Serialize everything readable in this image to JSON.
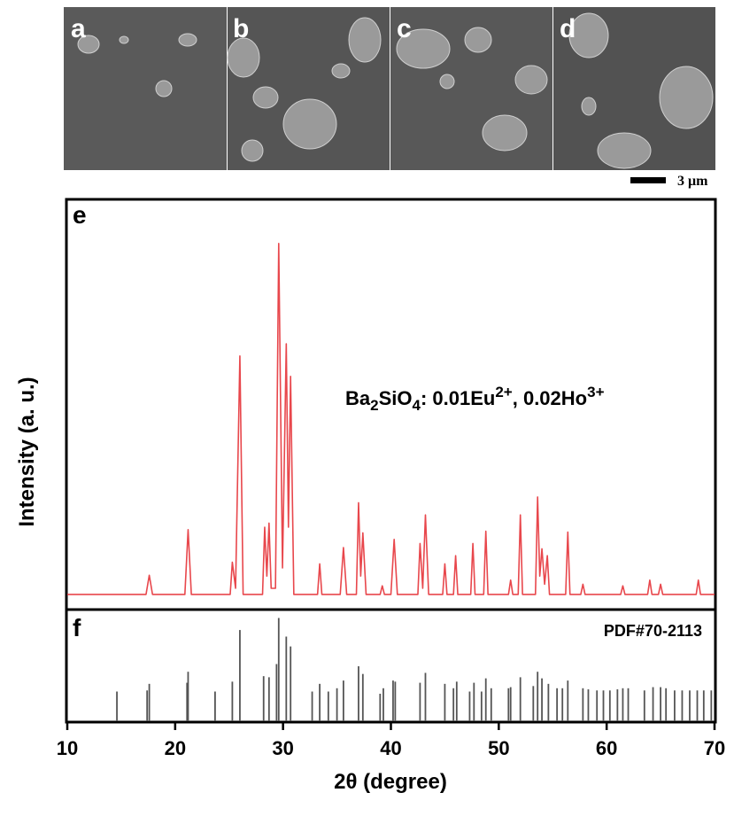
{
  "sem_panels": {
    "labels": [
      "a",
      "b",
      "c",
      "d"
    ],
    "scale_bar": "3 μm"
  },
  "chart_data": [
    {
      "type": "line",
      "panel_label": "e",
      "ylabel": "Intensity (a. u.)",
      "annotation": [
        "Ba",
        "2",
        "SiO",
        "4",
        ": 0.01Eu",
        "2+",
        ", 0.02Ho",
        "3+"
      ],
      "xlim": [
        10,
        70
      ],
      "ylim": [
        0,
        100
      ],
      "series": [
        {
          "color": "#e8474c",
          "x": [
            10,
            17.3,
            17.6,
            17.9,
            20.9,
            21.2,
            21.5,
            25.1,
            25.3,
            25.6,
            26.0,
            26.3,
            28.1,
            28.3,
            28.5,
            28.7,
            28.9,
            29.3,
            29.6,
            29.95,
            30.3,
            30.5,
            30.7,
            31.0,
            33.2,
            33.4,
            33.6,
            35.3,
            35.6,
            35.9,
            36.8,
            37.0,
            37.2,
            37.4,
            37.7,
            39.0,
            39.2,
            39.4,
            40.0,
            40.3,
            40.6,
            42.5,
            42.7,
            42.95,
            43.2,
            43.5,
            44.8,
            45.0,
            45.2,
            45.8,
            46.0,
            46.2,
            47.4,
            47.6,
            47.8,
            48.6,
            48.8,
            49.0,
            50.9,
            51.1,
            51.3,
            51.8,
            52.0,
            52.2,
            53.4,
            53.6,
            53.8,
            54.0,
            54.25,
            54.5,
            54.7,
            56.2,
            56.4,
            56.6,
            57.6,
            57.8,
            58.0,
            61.3,
            61.5,
            61.7,
            63.8,
            64.0,
            64.2,
            64.8,
            65.0,
            65.2,
            68.3,
            68.5,
            68.7,
            70
          ],
          "values": [
            3.5,
            3.5,
            8.2,
            3.5,
            3.5,
            19.4,
            3.5,
            3.5,
            11.4,
            5,
            62,
            3.5,
            3.5,
            20,
            8,
            21,
            5,
            5,
            89.6,
            10,
            65,
            20,
            57,
            3.5,
            3.5,
            11,
            3.5,
            3.5,
            15,
            3.5,
            3.5,
            26,
            8,
            18.6,
            3.5,
            3.5,
            5.6,
            3.5,
            3.5,
            17,
            3.5,
            3.5,
            16,
            5,
            23,
            3.5,
            3.5,
            11,
            3.5,
            3.5,
            13,
            3.5,
            3.5,
            16,
            3.5,
            3.5,
            19,
            3.5,
            3.5,
            7,
            3.5,
            3.5,
            23,
            3.5,
            3.5,
            27.4,
            8,
            14.7,
            6,
            13,
            3.5,
            3.5,
            18.8,
            3.5,
            3.5,
            6,
            3.5,
            3.5,
            5.6,
            3.5,
            3.5,
            7,
            3.5,
            3.5,
            6,
            3.5,
            3.5,
            7,
            3.5,
            3.5
          ]
        }
      ]
    },
    {
      "type": "stem",
      "panel_label": "f",
      "legend": "PDF#70-2113",
      "xlabel": "2θ (degree)",
      "xlim": [
        10,
        70
      ],
      "xticks": [
        10,
        20,
        30,
        40,
        50,
        60,
        70
      ],
      "ylim": [
        0,
        100
      ],
      "series": [
        {
          "color": "#555555",
          "x": [
            14.6,
            17.4,
            17.6,
            21.1,
            21.2,
            23.7,
            25.3,
            26.0,
            28.2,
            28.7,
            29.4,
            29.6,
            30.3,
            30.7,
            32.7,
            33.4,
            34.2,
            35.0,
            35.6,
            37.0,
            37.4,
            39.0,
            39.3,
            40.2,
            40.4,
            42.7,
            43.2,
            45.0,
            45.8,
            46.1,
            47.3,
            47.7,
            48.4,
            48.8,
            49.3,
            50.9,
            51.1,
            52.0,
            53.2,
            53.6,
            54.0,
            54.6,
            55.4,
            55.9,
            56.4,
            57.8,
            58.3,
            59.1,
            59.7,
            60.3,
            61.0,
            61.5,
            62.0,
            63.5,
            64.3,
            65.0,
            65.5,
            66.3,
            67.0,
            67.7,
            68.4,
            69.0,
            69.7
          ],
          "values": [
            27,
            28,
            34,
            35,
            45,
            27,
            36,
            83,
            41,
            40,
            52,
            94,
            77,
            68,
            27,
            34,
            27,
            30,
            37,
            50,
            43,
            25,
            30,
            37,
            36,
            35,
            44,
            34,
            30,
            36,
            27,
            35,
            27,
            39,
            30,
            30,
            31,
            40,
            32,
            45,
            39,
            34,
            30,
            30,
            37,
            30,
            29,
            28,
            28,
            28,
            29,
            30,
            30,
            28,
            31,
            31,
            30,
            28,
            28,
            28,
            28,
            28,
            28
          ]
        }
      ]
    }
  ]
}
